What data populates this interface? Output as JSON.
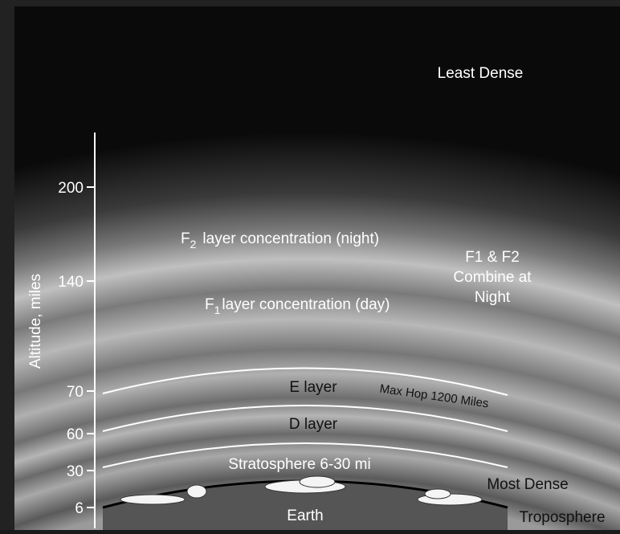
{
  "title": "Least Dense",
  "axis": {
    "label": "Altitude, miles",
    "ticks": [
      "200",
      "140",
      "70",
      "60",
      "30",
      "6"
    ]
  },
  "layers": {
    "f2": {
      "letter": "F",
      "sub": "2",
      "text": "layer concentration (night)"
    },
    "f1": {
      "letter": "F",
      "sub": "1",
      "text": "layer concentration (day)"
    },
    "combine": [
      "F1 & F2",
      "Combine at",
      "Night"
    ],
    "e": "E layer",
    "max_hop": "Max Hop 1200 Miles",
    "d": "D layer",
    "stratosphere": "Stratosphere 6-30 mi",
    "most_dense": "Most Dense",
    "earth": "Earth",
    "troposphere": "Troposphere"
  }
}
